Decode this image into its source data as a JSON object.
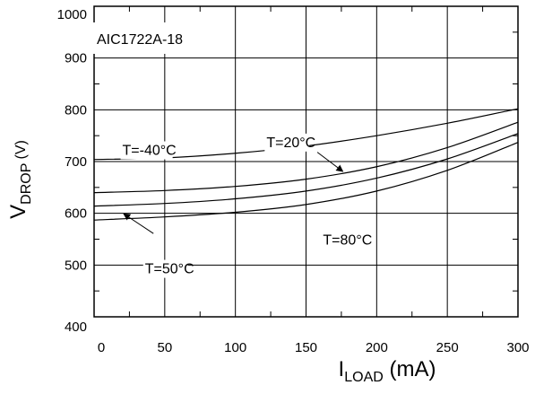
{
  "chart_data": {
    "type": "line",
    "title": "",
    "panel_label": "AIC1722A-18",
    "xlabel": {
      "main": "I",
      "sub": "LOAD",
      "suffix": " (mA)"
    },
    "ylabel": {
      "main": "V",
      "sub": "DROP",
      "suffix": " (V)"
    },
    "xlim": [
      0,
      300
    ],
    "ylim": [
      400,
      1000
    ],
    "x_ticks": [
      0,
      50,
      100,
      150,
      200,
      250,
      300
    ],
    "y_ticks": [
      400,
      500,
      600,
      700,
      800,
      900,
      1000
    ],
    "x_tick_labels": [
      "0",
      "50",
      "100",
      "150",
      "200",
      "250",
      "300"
    ],
    "y_tick_labels": [
      "400",
      "500",
      "600",
      "700",
      "800",
      "900",
      "1000"
    ],
    "grid": true,
    "series": [
      {
        "name": "T=-40°C",
        "x": [
          0,
          50,
          100,
          150,
          200,
          250,
          300
        ],
        "y": [
          704,
          707,
          716,
          730,
          750,
          774,
          802
        ]
      },
      {
        "name": "T=20°C",
        "x": [
          0,
          50,
          100,
          150,
          200,
          250,
          300
        ],
        "y": [
          640,
          644,
          652,
          666,
          690,
          727,
          776
        ]
      },
      {
        "name": "T=50°C",
        "x": [
          0,
          50,
          100,
          150,
          200,
          250,
          300
        ],
        "y": [
          614,
          619,
          628,
          643,
          668,
          705,
          754
        ]
      },
      {
        "name": "T=80°C",
        "x": [
          0,
          50,
          100,
          150,
          200,
          250,
          300
        ],
        "y": [
          587,
          593,
          602,
          617,
          643,
          683,
          737
        ]
      }
    ],
    "annotations": [
      {
        "text": "T=-40°C",
        "x": 20,
        "y": 713,
        "arrow": false
      },
      {
        "text": "T=20°C",
        "x": 122,
        "y": 728,
        "arrow": true,
        "arrow_from": [
          158,
          718
        ],
        "arrow_to": [
          176,
          681
        ]
      },
      {
        "text": "T=50°C",
        "x": 36,
        "y": 484,
        "arrow": true,
        "arrow_from": [
          42,
          561
        ],
        "arrow_to": [
          21,
          599
        ]
      },
      {
        "text": "T=80°C",
        "x": 162,
        "y": 540,
        "arrow": false
      }
    ]
  }
}
